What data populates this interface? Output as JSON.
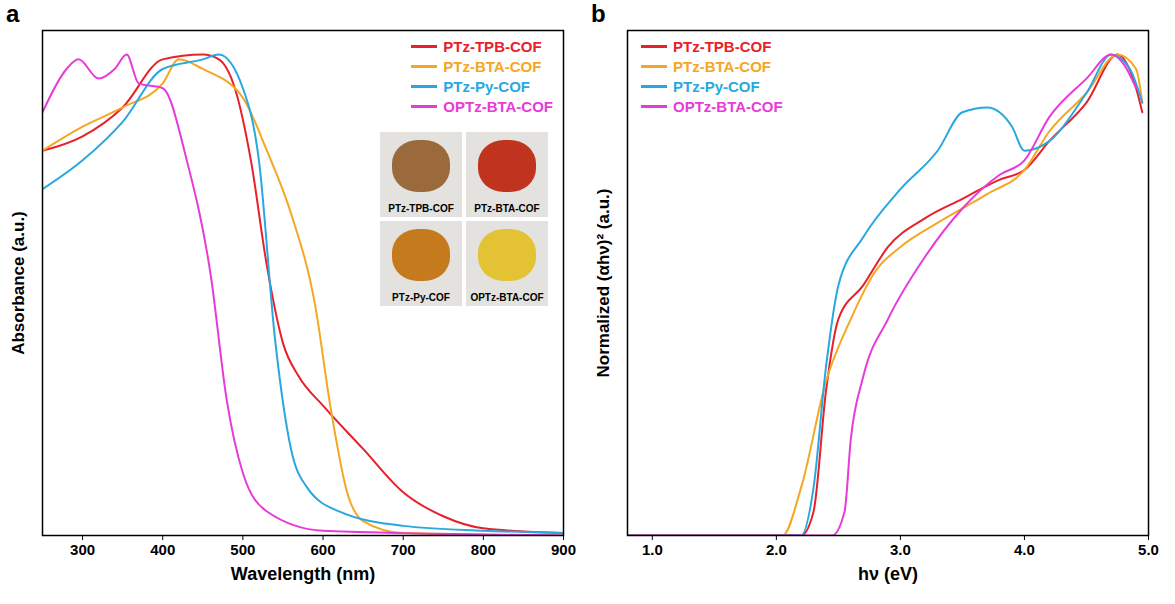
{
  "chart_data": [
    {
      "type": "line",
      "panel_label": "a",
      "x_label": "Wavelength (nm)",
      "y_label": "Absorbance (a.u.)",
      "xlim": [
        250,
        900
      ],
      "xticks": [
        300,
        400,
        500,
        600,
        700,
        800,
        900
      ],
      "ylim": [
        0,
        1.05
      ],
      "yticks": [],
      "tick_labels": "x",
      "legend": "top right",
      "series": [
        {
          "name": "PTz-TPB-COF",
          "color": "#e8202a",
          "x": [
            250,
            300,
            350,
            400,
            450,
            470,
            490,
            510,
            530,
            550,
            570,
            600,
            650,
            700,
            750,
            800,
            900
          ],
          "values": [
            0.8,
            0.83,
            0.89,
            0.99,
            1.0,
            0.99,
            0.93,
            0.78,
            0.56,
            0.4,
            0.33,
            0.27,
            0.18,
            0.09,
            0.04,
            0.015,
            0.005
          ]
        },
        {
          "name": "PTz-BTA-COF",
          "color": "#f5a623",
          "x": [
            250,
            300,
            350,
            400,
            420,
            450,
            500,
            530,
            560,
            590,
            610,
            630,
            650,
            700,
            900
          ],
          "values": [
            0.8,
            0.85,
            0.89,
            0.94,
            0.99,
            0.97,
            0.91,
            0.8,
            0.67,
            0.48,
            0.26,
            0.09,
            0.03,
            0.005,
            0
          ]
        },
        {
          "name": "PTz-Py-COF",
          "color": "#29a8e0",
          "x": [
            250,
            300,
            350,
            400,
            450,
            470,
            500,
            520,
            540,
            560,
            580,
            620,
            700,
            800,
            900
          ],
          "values": [
            0.72,
            0.78,
            0.86,
            0.97,
            0.99,
            1.0,
            0.93,
            0.78,
            0.41,
            0.18,
            0.1,
            0.05,
            0.02,
            0.01,
            0.005
          ]
        },
        {
          "name": "OPTz-BTA-COF",
          "color": "#e83ad8",
          "x": [
            250,
            280,
            295,
            320,
            340,
            355,
            370,
            400,
            430,
            460,
            480,
            500,
            530,
            600,
            900
          ],
          "values": [
            0.88,
            0.97,
            0.99,
            0.95,
            0.97,
            1.0,
            0.94,
            0.93,
            0.78,
            0.54,
            0.28,
            0.13,
            0.05,
            0.01,
            0
          ]
        }
      ],
      "inset": [
        {
          "label": "PTz-TPB-COF",
          "color": "#9a6a3c"
        },
        {
          "label": "PTz-BTA-COF",
          "color": "#c0341f"
        },
        {
          "label": "PTz-Py-COF",
          "color": "#c67a1e"
        },
        {
          "label": "OPTz-BTA-COF",
          "color": "#e3c234"
        }
      ]
    },
    {
      "type": "line",
      "panel_label": "b",
      "x_label": "hν (eV)",
      "y_label": "Normalized (αhν)² (a.u.)",
      "xlim": [
        0.8,
        5.0
      ],
      "xticks": [
        1,
        2,
        3,
        4,
        5
      ],
      "ylim": [
        0,
        1.05
      ],
      "yticks": [],
      "tick_labels": "x",
      "legend": "top left",
      "series": [
        {
          "name": "PTz-TPB-COF",
          "color": "#e8202a",
          "x": [
            0.8,
            2.2,
            2.3,
            2.4,
            2.5,
            2.7,
            2.9,
            3.2,
            3.5,
            3.8,
            4.0,
            4.2,
            4.5,
            4.75,
            4.9,
            4.95
          ],
          "values": [
            0,
            0,
            0.05,
            0.3,
            0.45,
            0.52,
            0.6,
            0.66,
            0.7,
            0.74,
            0.76,
            0.82,
            0.9,
            1.0,
            0.93,
            0.88
          ]
        },
        {
          "name": "PTz-BTA-COF",
          "color": "#f5a623",
          "x": [
            0.8,
            2.05,
            2.2,
            2.4,
            2.6,
            2.8,
            3.0,
            3.3,
            3.5,
            3.7,
            4.0,
            4.2,
            4.5,
            4.75,
            4.9,
            4.95
          ],
          "values": [
            0,
            0,
            0.1,
            0.32,
            0.45,
            0.55,
            0.6,
            0.65,
            0.68,
            0.71,
            0.76,
            0.84,
            0.92,
            1.0,
            0.97,
            0.9
          ]
        },
        {
          "name": "PTz-Py-COF",
          "color": "#29a8e0",
          "x": [
            0.8,
            2.2,
            2.3,
            2.4,
            2.5,
            2.7,
            3.0,
            3.3,
            3.5,
            3.7,
            3.9,
            4.0,
            4.2,
            4.5,
            4.7,
            4.85,
            4.95
          ],
          "values": [
            0,
            0,
            0.1,
            0.35,
            0.52,
            0.62,
            0.72,
            0.8,
            0.88,
            0.89,
            0.85,
            0.8,
            0.82,
            0.92,
            1.0,
            0.97,
            0.9
          ]
        },
        {
          "name": "OPTz-BTA-COF",
          "color": "#e83ad8",
          "x": [
            0.8,
            2.45,
            2.55,
            2.6,
            2.7,
            2.9,
            3.2,
            3.5,
            3.8,
            4.0,
            4.2,
            4.5,
            4.7,
            4.8,
            4.9
          ],
          "values": [
            0,
            0,
            0.05,
            0.2,
            0.33,
            0.45,
            0.58,
            0.68,
            0.75,
            0.78,
            0.87,
            0.95,
            1.0,
            0.98,
            0.93
          ]
        }
      ]
    }
  ]
}
